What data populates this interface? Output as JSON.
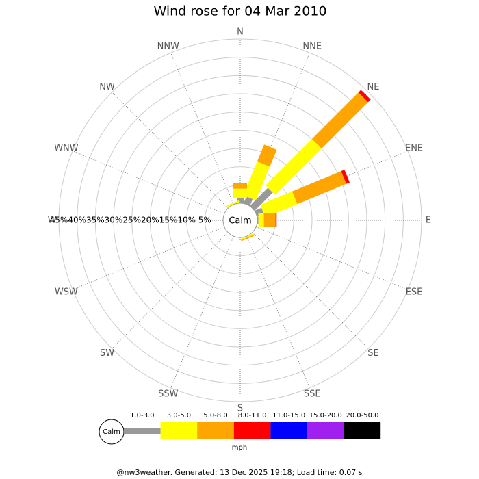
{
  "chart_data": {
    "type": "wind-rose",
    "title": "Wind rose for 04 Mar 2010",
    "directions": [
      "N",
      "NNE",
      "NE",
      "ENE",
      "E",
      "ESE",
      "SE",
      "SSE",
      "S",
      "SSW",
      "SW",
      "WSW",
      "W",
      "WNW",
      "NW",
      "NNW"
    ],
    "series": [
      {
        "name": "1.0-3.0",
        "color": "#999999",
        "values": [
          1.5,
          2,
          7,
          2,
          0.3,
          0,
          0,
          0,
          0,
          0,
          0,
          0,
          0,
          0,
          0,
          0
        ]
      },
      {
        "name": "3.0-5.0",
        "color": "#ffff00",
        "values": [
          2.5,
          10,
          18,
          9.5,
          1.5,
          0,
          0,
          0.4,
          0,
          0,
          0,
          0,
          0,
          0,
          0,
          0.5
        ]
      },
      {
        "name": "5.0-8.0",
        "color": "#ffa500",
        "values": [
          1.5,
          5,
          18,
          14.5,
          3.2,
          0,
          0,
          0.3,
          0,
          0,
          0,
          0,
          0,
          0,
          0,
          0
        ]
      },
      {
        "name": "8.0-11.0",
        "color": "#ff0000",
        "values": [
          0,
          0,
          1,
          1,
          0.3,
          0,
          0,
          0,
          0,
          0,
          0,
          0,
          0,
          0,
          0,
          0
        ]
      },
      {
        "name": "11.0-15.0",
        "color": "#0000ff",
        "values": [
          0,
          0,
          0,
          0,
          0,
          0,
          0,
          0,
          0,
          0,
          0,
          0,
          0,
          0,
          0,
          0
        ]
      },
      {
        "name": "15.0-20.0",
        "color": "#a020f0",
        "values": [
          0,
          0,
          0,
          0,
          0,
          0,
          0,
          0,
          0,
          0,
          0,
          0,
          0,
          0,
          0,
          0
        ]
      },
      {
        "name": "20.0-50.0",
        "color": "#000000",
        "values": [
          0,
          0,
          0,
          0,
          0,
          0,
          0,
          0,
          0,
          0,
          0,
          0,
          0,
          0,
          0,
          0
        ]
      }
    ],
    "rlim": [
      0,
      45
    ],
    "rticks": [
      {
        "value": 5,
        "label": "5%"
      },
      {
        "value": 10,
        "label": "10%"
      },
      {
        "value": 15,
        "label": "15%"
      },
      {
        "value": 20,
        "label": "20%"
      },
      {
        "value": 25,
        "label": "25%"
      },
      {
        "value": 30,
        "label": "30%"
      },
      {
        "value": 35,
        "label": "35%"
      },
      {
        "value": 40,
        "label": "40%"
      },
      {
        "value": 45,
        "label": "45%"
      }
    ],
    "calm_label": "Calm",
    "unit": "mph",
    "footer": "@nw3weather.  Generated: 13 Dec 2025 19:18; Load time: 0.07 s"
  }
}
